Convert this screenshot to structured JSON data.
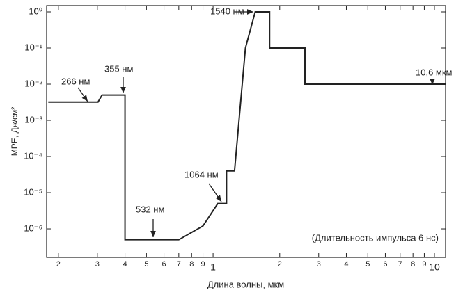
{
  "chart_data": {
    "type": "line",
    "y_label": "MPE, Дж/см²",
    "x_label": "Длина волны, мкм",
    "log_x": true,
    "log_y": true,
    "xlim": [
      0.177,
      11.23
    ],
    "ylim": [
      1.63e-07,
      1.49
    ],
    "xticks": [
      {
        "value": 0.2,
        "label": "2"
      },
      {
        "value": 0.3,
        "label": "3"
      },
      {
        "value": 0.4,
        "label": "4"
      },
      {
        "value": 0.5,
        "label": "5"
      },
      {
        "value": 0.6,
        "label": "6"
      },
      {
        "value": 0.7,
        "label": "7"
      },
      {
        "value": 0.8,
        "label": "8"
      },
      {
        "value": 0.9,
        "label": "9"
      },
      1,
      2,
      3,
      4,
      5,
      6,
      7,
      8,
      9,
      10
    ],
    "yticks": [
      {
        "value": 1,
        "label": "10⁰"
      },
      {
        "value": 0.1,
        "label": "10⁻¹"
      },
      {
        "value": 0.01,
        "label": "10⁻²"
      },
      {
        "value": 0.001,
        "label": "10⁻³"
      },
      {
        "value": 0.0001,
        "label": "10⁻⁴"
      },
      {
        "value": 1e-05,
        "label": "10⁻⁵"
      },
      {
        "value": 1e-06,
        "label": "10⁻⁶"
      }
    ],
    "series": [
      {
        "color": "#222222",
        "x": [
          0.18,
          0.302,
          0.315,
          0.4,
          0.4,
          0.7,
          0.9,
          1.05,
          1.15,
          1.15,
          1.25,
          1.4,
          1.55,
          1.8,
          1.8,
          2.6,
          2.6,
          11.2
        ],
        "values": [
          0.0032,
          0.0032,
          0.005,
          0.005,
          5e-07,
          5e-07,
          1.2e-06,
          5e-06,
          5e-06,
          4e-05,
          4e-05,
          0.1,
          1,
          1,
          0.1,
          0.1,
          0.01,
          0.01
        ]
      }
    ],
    "annotations": [
      "266 нм",
      "355 нм",
      "532 нм",
      "1064 нм",
      "1540 нм",
      "10,6 мкм",
      "(Длительность импульса 6 нс)"
    ]
  }
}
